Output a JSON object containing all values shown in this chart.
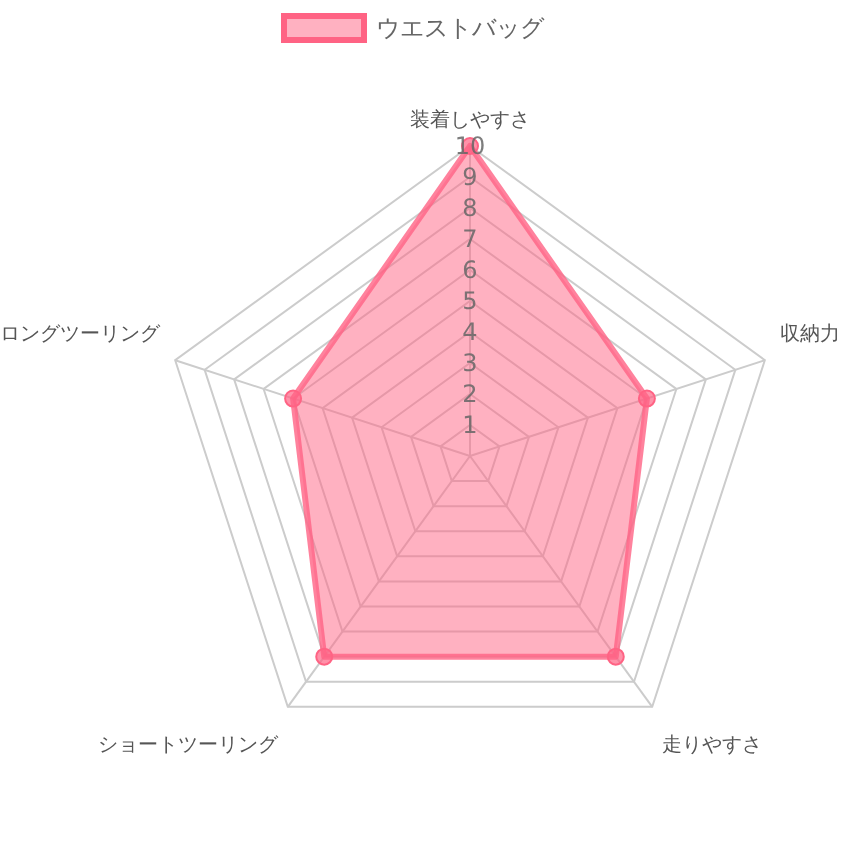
{
  "chart_data": {
    "type": "radar",
    "categories": [
      "装着しやすさ",
      "収納力",
      "走りやすさ",
      "ショートツーリング",
      "ロングツーリング"
    ],
    "series": [
      {
        "name": "ウエストバッグ",
        "color": "#ff6384",
        "values": [
          10,
          6,
          8,
          8,
          6
        ]
      }
    ],
    "ylim": [
      0,
      10
    ],
    "yticks": [
      1,
      2,
      3,
      4,
      5,
      6,
      7,
      8,
      9,
      10
    ],
    "grid": true,
    "legend": "top"
  }
}
